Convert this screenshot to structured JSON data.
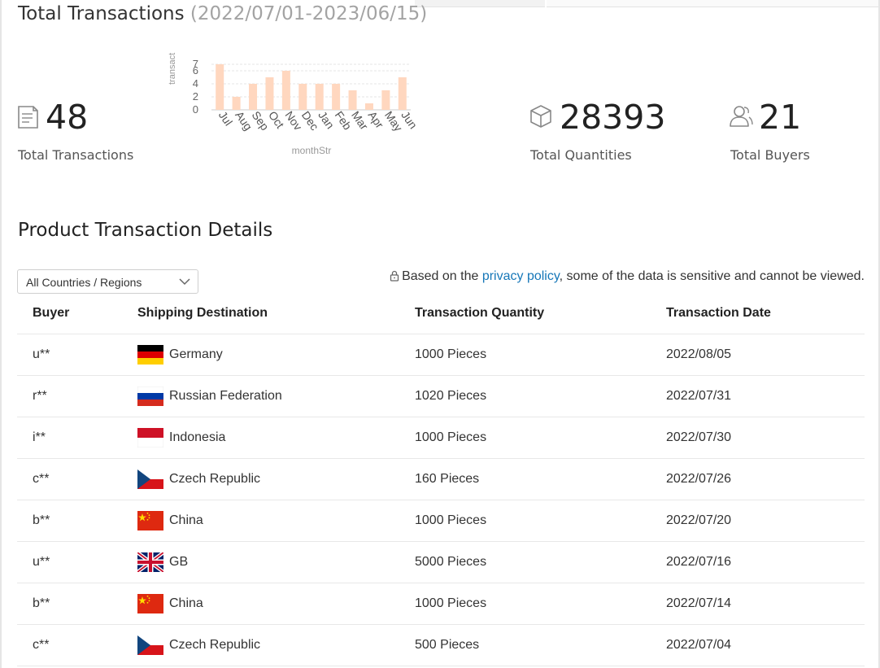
{
  "header": {
    "title": "Total Transactions",
    "range": "(2022/07/01-2023/06/15)"
  },
  "stats": {
    "transactions": {
      "value": "48",
      "label": "Total Transactions",
      "icon": "document-icon"
    },
    "quantities": {
      "value": "28393",
      "label": "Total Quantities",
      "icon": "box-icon"
    },
    "buyers": {
      "value": "21",
      "label": "Total Buyers",
      "icon": "users-icon"
    }
  },
  "chart_data": {
    "type": "bar",
    "ylabel": "transact",
    "xlabel": "monthStr",
    "categories": [
      "Jul",
      "Aug",
      "Sep",
      "Oct",
      "Nov",
      "Dec",
      "Jan",
      "Feb",
      "Mar",
      "Apr",
      "May",
      "Jun"
    ],
    "values": [
      7,
      2,
      4,
      5,
      6,
      4,
      4,
      4,
      3,
      1,
      3,
      5
    ],
    "yticks": [
      "0",
      "2",
      "4",
      "6",
      "7"
    ],
    "ylim": [
      0,
      7
    ],
    "grid": true,
    "bar_color": "#ffd7bf"
  },
  "details": {
    "title": "Product Transaction Details",
    "filter_value": "All Countries / Regions",
    "privacy_prefix": "Based on the ",
    "privacy_link": "privacy policy",
    "privacy_suffix": ", some of the data is sensitive and cannot be viewed."
  },
  "table": {
    "headers": [
      "Buyer",
      "Shipping Destination",
      "Transaction Quantity",
      "Transaction Date"
    ],
    "rows": [
      {
        "buyer": "u**",
        "country": "Germany",
        "flag": "germany",
        "quantity": "1000 Pieces",
        "date": "2022/08/05"
      },
      {
        "buyer": "r**",
        "country": "Russian Federation",
        "flag": "russia",
        "quantity": "1020 Pieces",
        "date": "2022/07/31"
      },
      {
        "buyer": "i**",
        "country": "Indonesia",
        "flag": "indonesia",
        "quantity": "1000 Pieces",
        "date": "2022/07/30"
      },
      {
        "buyer": "c**",
        "country": "Czech Republic",
        "flag": "czech",
        "quantity": "160 Pieces",
        "date": "2022/07/26"
      },
      {
        "buyer": "b**",
        "country": "China",
        "flag": "china",
        "quantity": "1000 Pieces",
        "date": "2022/07/20"
      },
      {
        "buyer": "u**",
        "country": "GB",
        "flag": "uk",
        "quantity": "5000 Pieces",
        "date": "2022/07/16"
      },
      {
        "buyer": "b**",
        "country": "China",
        "flag": "china",
        "quantity": "1000 Pieces",
        "date": "2022/07/14"
      },
      {
        "buyer": "c**",
        "country": "Czech Republic",
        "flag": "czech",
        "quantity": "500 Pieces",
        "date": "2022/07/04"
      }
    ]
  },
  "colors": {
    "link": "#1677b8",
    "bar": "#ffd7bf",
    "range_text": "#a3a3a3"
  }
}
